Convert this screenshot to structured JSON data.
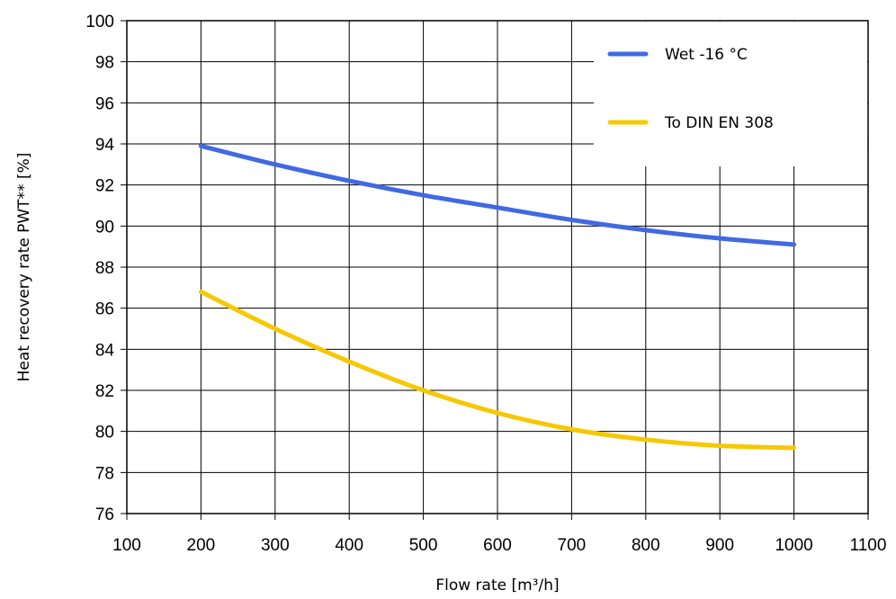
{
  "chart_data": {
    "type": "line",
    "xlabel": "Flow rate [m³/h]",
    "ylabel": "Heat recovery rate PWT** [%]",
    "xlim": [
      100,
      1100
    ],
    "ylim": [
      76,
      100
    ],
    "x_ticks": [
      "100",
      "200",
      "300",
      "400",
      "500",
      "600",
      "700",
      "800",
      "900",
      "1000",
      "1100"
    ],
    "y_ticks": [
      "76",
      "78",
      "80",
      "82",
      "84",
      "86",
      "88",
      "90",
      "92",
      "94",
      "96",
      "98",
      "100"
    ],
    "grid": true,
    "legend_position": "top-right",
    "series": [
      {
        "name": "Wet -16 °C",
        "color": "#4169e1",
        "x": [
          200,
          300,
          400,
          500,
          600,
          700,
          800,
          900,
          1000
        ],
        "y": [
          93.9,
          93.0,
          92.2,
          91.5,
          90.9,
          90.3,
          89.8,
          89.4,
          89.1
        ]
      },
      {
        "name": "To DIN EN 308",
        "color": "#f5c800",
        "x": [
          200,
          300,
          400,
          500,
          600,
          700,
          800,
          900,
          1000
        ],
        "y": [
          86.8,
          85.0,
          83.4,
          82.0,
          80.9,
          80.1,
          79.6,
          79.3,
          79.2
        ]
      }
    ]
  }
}
